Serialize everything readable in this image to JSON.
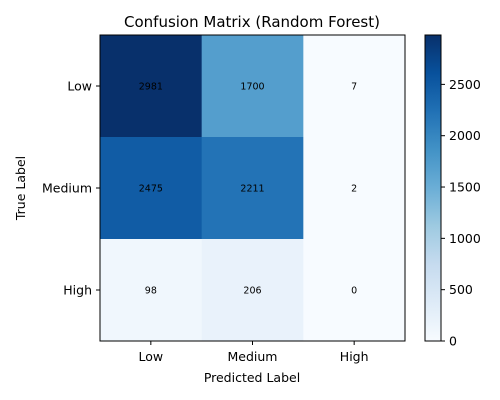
{
  "chart_data": {
    "type": "heatmap",
    "title": "Confusion Matrix (Random Forest)",
    "xlabel": "Predicted Label",
    "ylabel": "True Label",
    "x_categories": [
      "Low",
      "Medium",
      "High"
    ],
    "y_categories": [
      "Low",
      "Medium",
      "High"
    ],
    "values": [
      [
        2981,
        1700,
        7
      ],
      [
        2475,
        2211,
        2
      ],
      [
        98,
        206,
        0
      ]
    ],
    "colormap": "Blues",
    "colorbar": {
      "min": 0,
      "max": 2981,
      "ticks": [
        0,
        500,
        1000,
        1500,
        2000,
        2500
      ]
    }
  }
}
